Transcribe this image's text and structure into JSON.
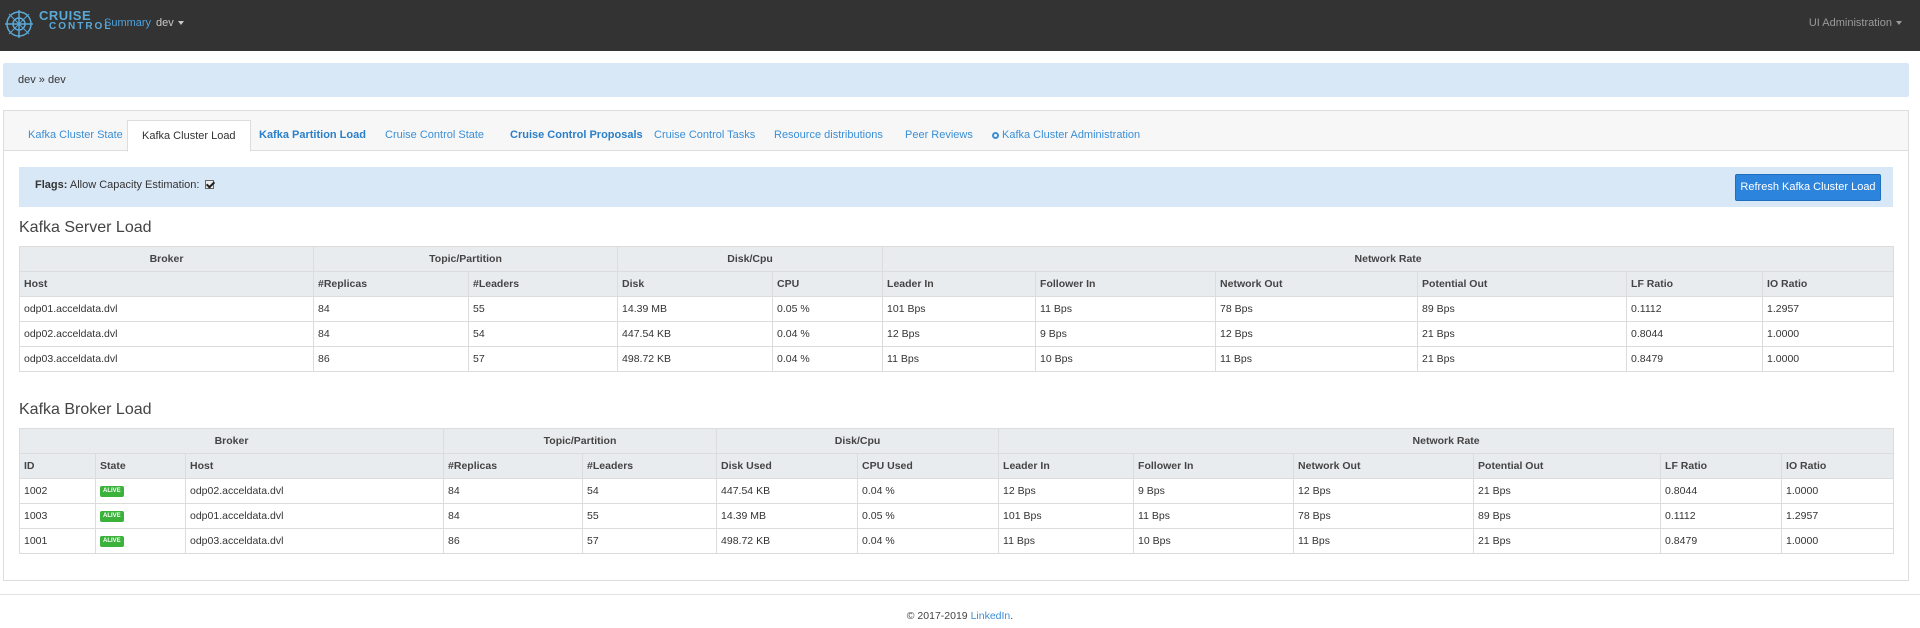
{
  "navbar": {
    "logo_line1": "CRUISE",
    "logo_line2": "CONTROL",
    "summary_link": "Summary",
    "cluster_dropdown": "dev",
    "admin_menu": "UI Administration"
  },
  "breadcrumb": "dev » dev",
  "tabs": [
    {
      "label": "Kafka Cluster State"
    },
    {
      "label": "Kafka Cluster Load"
    },
    {
      "label": "Kafka Partition Load"
    },
    {
      "label": "Cruise Control State"
    },
    {
      "label": "Cruise Control Proposals"
    },
    {
      "label": "Cruise Control Tasks"
    },
    {
      "label": "Resource distributions"
    },
    {
      "label": "Peer Reviews"
    },
    {
      "label": "Kafka Cluster Administration"
    }
  ],
  "flags": {
    "label": "Flags:",
    "option": "Allow Capacity Estimation:",
    "checked": true
  },
  "refresh_button": "Refresh Kafka Cluster Load",
  "server_load": {
    "title": "Kafka Server Load",
    "groups": [
      "Broker",
      "Topic/Partition",
      "Disk/Cpu",
      "Network Rate"
    ],
    "columns": [
      "Host",
      "#Replicas",
      "#Leaders",
      "Disk",
      "CPU",
      "Leader In",
      "Follower In",
      "Network Out",
      "Potential Out",
      "LF Ratio",
      "IO Ratio"
    ],
    "rows": [
      [
        "odp01.acceldata.dvl",
        "84",
        "55",
        "14.39 MB",
        "0.05 %",
        "101 Bps",
        "11 Bps",
        "78 Bps",
        "89 Bps",
        "0.1112",
        "1.2957"
      ],
      [
        "odp02.acceldata.dvl",
        "84",
        "54",
        "447.54 KB",
        "0.04 %",
        "12 Bps",
        "9 Bps",
        "12 Bps",
        "21 Bps",
        "0.8044",
        "1.0000"
      ],
      [
        "odp03.acceldata.dvl",
        "86",
        "57",
        "498.72 KB",
        "0.04 %",
        "11 Bps",
        "10 Bps",
        "11 Bps",
        "21 Bps",
        "0.8479",
        "1.0000"
      ]
    ]
  },
  "broker_load": {
    "title": "Kafka Broker Load",
    "groups": [
      "Broker",
      "Topic/Partition",
      "Disk/Cpu",
      "Network Rate"
    ],
    "columns": [
      "ID",
      "State",
      "Host",
      "#Replicas",
      "#Leaders",
      "Disk Used",
      "CPU Used",
      "Leader In",
      "Follower In",
      "Network Out",
      "Potential Out",
      "LF Ratio",
      "IO Ratio"
    ],
    "rows": [
      [
        "1002",
        "ALIVE",
        "odp02.acceldata.dvl",
        "84",
        "54",
        "447.54 KB",
        "0.04 %",
        "12 Bps",
        "9 Bps",
        "12 Bps",
        "21 Bps",
        "0.8044",
        "1.0000"
      ],
      [
        "1003",
        "ALIVE",
        "odp01.acceldata.dvl",
        "84",
        "55",
        "14.39 MB",
        "0.05 %",
        "101 Bps",
        "11 Bps",
        "78 Bps",
        "89 Bps",
        "0.1112",
        "1.2957"
      ],
      [
        "1001",
        "ALIVE",
        "odp03.acceldata.dvl",
        "86",
        "57",
        "498.72 KB",
        "0.04 %",
        "11 Bps",
        "10 Bps",
        "11 Bps",
        "21 Bps",
        "0.8479",
        "1.0000"
      ]
    ]
  },
  "footer": {
    "copyright": "© 2017-2019",
    "link": "LinkedIn",
    "suffix": "."
  },
  "colors": {
    "navbar_bg": "#333333",
    "breadcrumb_bg": "#d9e8f7",
    "link": "#3a8fd6",
    "primary_button": "#2c84dc",
    "alive_badge": "#3bb33b"
  },
  "icons": [
    "logo-icon",
    "caret-down-icon",
    "gear-icon",
    "checkbox-checked-icon"
  ]
}
